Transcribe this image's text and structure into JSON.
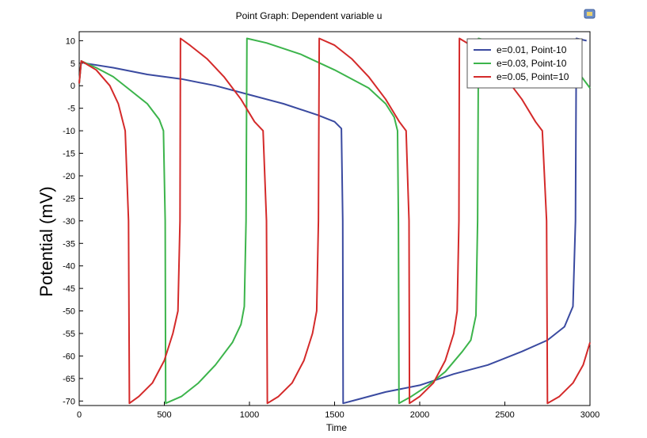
{
  "chart_data": {
    "type": "line",
    "title": "Point Graph: Dependent variable u",
    "xlabel": "Time",
    "ylabel": "Potential (mV)",
    "xlim": [
      0,
      3000
    ],
    "ylim": [
      -71,
      12
    ],
    "x_ticks": [
      0,
      500,
      1000,
      1500,
      2000,
      2500,
      3000
    ],
    "y_ticks": [
      10,
      5,
      0,
      -5,
      -10,
      -15,
      -20,
      -25,
      -30,
      -35,
      -40,
      -45,
      -50,
      -55,
      -60,
      -65,
      -70
    ],
    "grid": true,
    "legend_position": "top-right",
    "series": [
      {
        "name": "e=0.01, Point-10",
        "color": "#3a4aa0",
        "points": [
          [
            0,
            0.5
          ],
          [
            12,
            5.5
          ],
          [
            30,
            5
          ],
          [
            200,
            4
          ],
          [
            400,
            2.5
          ],
          [
            600,
            1.5
          ],
          [
            800,
            0
          ],
          [
            1000,
            -2
          ],
          [
            1200,
            -4
          ],
          [
            1400,
            -6.5
          ],
          [
            1500,
            -8
          ],
          [
            1540,
            -9.5
          ],
          [
            1548,
            -30
          ],
          [
            1550,
            -70.5
          ],
          [
            1650,
            -69.5
          ],
          [
            1800,
            -68
          ],
          [
            2000,
            -66.5
          ],
          [
            2200,
            -64
          ],
          [
            2400,
            -62
          ],
          [
            2600,
            -59
          ],
          [
            2750,
            -56.5
          ],
          [
            2850,
            -53.5
          ],
          [
            2900,
            -49
          ],
          [
            2915,
            -30
          ],
          [
            2920,
            10.5
          ],
          [
            2980,
            10
          ]
        ]
      },
      {
        "name": "e=0.03, Point-10",
        "color": "#3cb44b",
        "points": [
          [
            0,
            0.5
          ],
          [
            12,
            5.5
          ],
          [
            100,
            4
          ],
          [
            200,
            2
          ],
          [
            300,
            -1
          ],
          [
            400,
            -4
          ],
          [
            470,
            -7.5
          ],
          [
            495,
            -10
          ],
          [
            505,
            -30
          ],
          [
            508,
            -70.5
          ],
          [
            600,
            -69
          ],
          [
            700,
            -66
          ],
          [
            800,
            -62
          ],
          [
            900,
            -57
          ],
          [
            950,
            -53
          ],
          [
            970,
            -49
          ],
          [
            980,
            -30
          ],
          [
            985,
            10.5
          ],
          [
            1100,
            9.5
          ],
          [
            1300,
            7
          ],
          [
            1500,
            3.5
          ],
          [
            1700,
            -0.5
          ],
          [
            1800,
            -4
          ],
          [
            1850,
            -7
          ],
          [
            1870,
            -10
          ],
          [
            1875,
            -30
          ],
          [
            1878,
            -70.5
          ],
          [
            1950,
            -69
          ],
          [
            2050,
            -66.5
          ],
          [
            2150,
            -63.5
          ],
          [
            2250,
            -59
          ],
          [
            2300,
            -56.5
          ],
          [
            2330,
            -51
          ],
          [
            2340,
            -30
          ],
          [
            2345,
            10.5
          ],
          [
            2450,
            9.5
          ],
          [
            2650,
            7
          ],
          [
            2850,
            3.5
          ],
          [
            2950,
            2
          ],
          [
            3000,
            -0.5
          ]
        ]
      },
      {
        "name": "e=0.05, Point=10",
        "color": "#d42a2a",
        "points": [
          [
            0,
            0.5
          ],
          [
            12,
            5.5
          ],
          [
            100,
            3.5
          ],
          [
            180,
            0
          ],
          [
            230,
            -4
          ],
          [
            270,
            -10
          ],
          [
            290,
            -30
          ],
          [
            295,
            -70.5
          ],
          [
            350,
            -69
          ],
          [
            430,
            -66
          ],
          [
            500,
            -61
          ],
          [
            550,
            -55
          ],
          [
            580,
            -50
          ],
          [
            592,
            -30
          ],
          [
            595,
            10.5
          ],
          [
            650,
            9
          ],
          [
            750,
            6
          ],
          [
            850,
            2
          ],
          [
            950,
            -3
          ],
          [
            1030,
            -8
          ],
          [
            1080,
            -10
          ],
          [
            1100,
            -30
          ],
          [
            1105,
            -70.5
          ],
          [
            1170,
            -69
          ],
          [
            1250,
            -66
          ],
          [
            1320,
            -61
          ],
          [
            1370,
            -55
          ],
          [
            1395,
            -50
          ],
          [
            1405,
            -30
          ],
          [
            1410,
            10.5
          ],
          [
            1500,
            9
          ],
          [
            1600,
            6
          ],
          [
            1700,
            2
          ],
          [
            1800,
            -3
          ],
          [
            1880,
            -8
          ],
          [
            1920,
            -10
          ],
          [
            1937,
            -30
          ],
          [
            1940,
            -70.5
          ],
          [
            2000,
            -69
          ],
          [
            2080,
            -66
          ],
          [
            2150,
            -61
          ],
          [
            2200,
            -55
          ],
          [
            2220,
            -50
          ],
          [
            2230,
            -30
          ],
          [
            2233,
            10.5
          ],
          [
            2300,
            9
          ],
          [
            2400,
            6
          ],
          [
            2500,
            2
          ],
          [
            2600,
            -3
          ],
          [
            2680,
            -8
          ],
          [
            2720,
            -10
          ],
          [
            2745,
            -30
          ],
          [
            2750,
            -70.5
          ],
          [
            2820,
            -69
          ],
          [
            2900,
            -66
          ],
          [
            2960,
            -62
          ],
          [
            3000,
            -57
          ]
        ]
      }
    ]
  }
}
